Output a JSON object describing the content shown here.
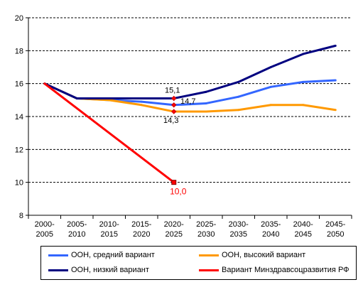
{
  "chart_data": {
    "type": "line",
    "categories": [
      [
        "2000-",
        "2005"
      ],
      [
        "2005-",
        "2010"
      ],
      [
        "2010-",
        "2015"
      ],
      [
        "2015-",
        "2020"
      ],
      [
        "2020-",
        "2025"
      ],
      [
        "2025-",
        "2030"
      ],
      [
        "2030-",
        "2035"
      ],
      [
        "2035-",
        "2040"
      ],
      [
        "2040-",
        "2045"
      ],
      [
        "2045-",
        "2050"
      ]
    ],
    "ylim": [
      8,
      20
    ],
    "yticks": [
      8,
      10,
      12,
      14,
      16,
      18,
      20
    ],
    "grid": true,
    "legend_position": "bottom",
    "series": [
      {
        "name": "ООН, средний вариант",
        "color": "#3366ff",
        "values": [
          16.0,
          15.1,
          15.0,
          14.9,
          14.7,
          14.8,
          15.2,
          15.8,
          16.1,
          16.2
        ]
      },
      {
        "name": "ООН, высокий вариант",
        "color": "#ff9900",
        "values": [
          16.0,
          15.1,
          15.0,
          14.7,
          14.3,
          14.3,
          14.4,
          14.7,
          14.7,
          14.4
        ]
      },
      {
        "name": "ООН, низкий вариант",
        "color": "#000080",
        "values": [
          16.0,
          15.1,
          15.1,
          15.1,
          15.1,
          15.5,
          16.1,
          17.0,
          17.8,
          18.3
        ]
      },
      {
        "name": "Вариант Минздравсоцразвития РФ",
        "color": "#ff0000",
        "values": [
          16.0,
          null,
          null,
          null,
          10.0,
          null,
          null,
          null,
          null,
          null
        ]
      }
    ],
    "annotations": [
      {
        "text": "15,1",
        "category_index": 4,
        "value": 15.1,
        "color": "#000000"
      },
      {
        "text": "14,7",
        "category_index": 4,
        "value": 14.7,
        "color": "#000000"
      },
      {
        "text": "14,3",
        "category_index": 4,
        "value": 14.3,
        "color": "#000000"
      },
      {
        "text": "10,0",
        "category_index": 4,
        "value": 10.0,
        "color": "#ff0000"
      }
    ]
  }
}
